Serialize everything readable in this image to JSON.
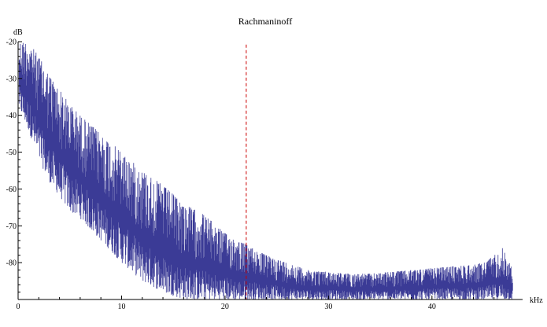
{
  "chart_data": {
    "type": "line",
    "title": "Rachmaninoff",
    "xlabel": "kHz",
    "ylabel": "dB",
    "xlim": [
      0,
      48
    ],
    "ylim": [
      -90,
      -20
    ],
    "x_ticks": [
      0,
      10,
      20,
      30,
      40
    ],
    "y_ticks": [
      -20,
      -30,
      -40,
      -50,
      -60,
      -70,
      -80
    ],
    "x_tick_labels": [
      "0",
      "10",
      "20",
      "30",
      "40"
    ],
    "y_tick_labels": [
      "-20",
      "-30",
      "-40",
      "-50",
      "-60",
      "-70",
      "-80"
    ],
    "grid": false,
    "series": [
      {
        "name": "",
        "color": "#3b3b96",
        "envelope_upper": [
          [
            0.1,
            -20
          ],
          [
            1,
            -20
          ],
          [
            2,
            -24
          ],
          [
            3,
            -29
          ],
          [
            4,
            -33
          ],
          [
            5,
            -37
          ],
          [
            6,
            -40
          ],
          [
            8,
            -45
          ],
          [
            10,
            -50
          ],
          [
            12,
            -55
          ],
          [
            14,
            -59
          ],
          [
            16,
            -64
          ],
          [
            18,
            -67
          ],
          [
            20,
            -72
          ],
          [
            22,
            -75
          ],
          [
            24,
            -78
          ],
          [
            26,
            -80
          ],
          [
            28,
            -82
          ],
          [
            30,
            -82.5
          ],
          [
            32,
            -83
          ],
          [
            34,
            -83
          ],
          [
            36,
            -82.5
          ],
          [
            38,
            -82
          ],
          [
            40,
            -81.5
          ],
          [
            42,
            -81
          ],
          [
            44,
            -80.5
          ],
          [
            45,
            -80
          ],
          [
            46,
            -78
          ],
          [
            46.8,
            -76
          ],
          [
            47.2,
            -78
          ],
          [
            47.8,
            -82
          ]
        ],
        "envelope_lower": [
          [
            0.1,
            -38
          ],
          [
            1,
            -44
          ],
          [
            2,
            -52
          ],
          [
            3,
            -58
          ],
          [
            4,
            -62
          ],
          [
            5,
            -66
          ],
          [
            6,
            -68
          ],
          [
            8,
            -74
          ],
          [
            10,
            -80
          ],
          [
            12,
            -85
          ],
          [
            14,
            -88
          ],
          [
            16,
            -90
          ],
          [
            18,
            -90
          ],
          [
            20,
            -90
          ],
          [
            22,
            -90
          ],
          [
            24,
            -90
          ],
          [
            26,
            -90
          ],
          [
            28,
            -90
          ],
          [
            30,
            -90
          ],
          [
            32,
            -90
          ],
          [
            34,
            -90
          ],
          [
            36,
            -90
          ],
          [
            38,
            -90
          ],
          [
            40,
            -90
          ],
          [
            42,
            -90
          ],
          [
            44,
            -90
          ],
          [
            46,
            -90
          ],
          [
            47.8,
            -90
          ]
        ]
      }
    ],
    "reference_lines": [
      {
        "orientation": "vertical",
        "x": 22.05,
        "y_from": -20.8,
        "y_to": -90,
        "color": "#cc0000",
        "style": "dashed"
      }
    ]
  }
}
